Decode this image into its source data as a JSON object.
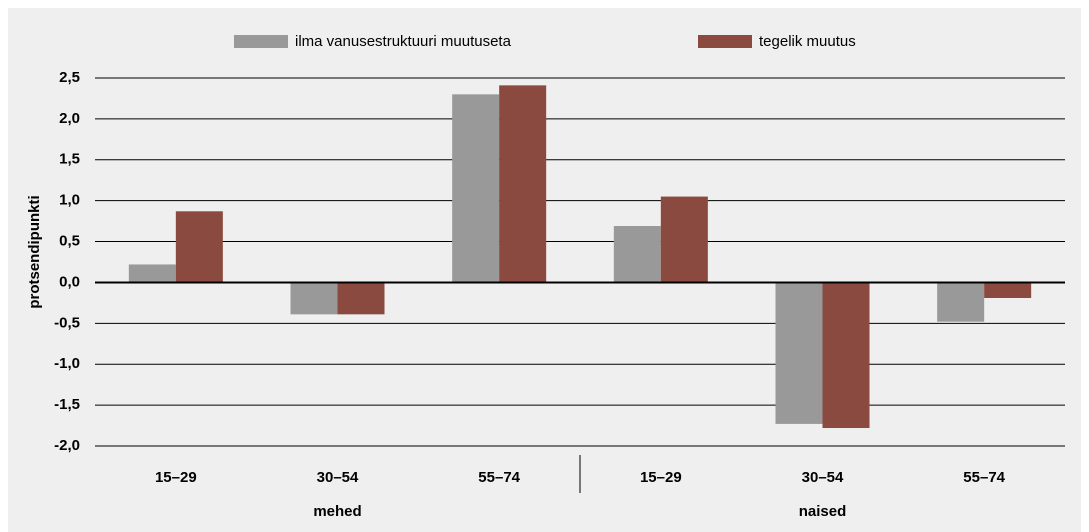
{
  "chart_data": {
    "type": "bar",
    "y_label": "protsendipunkti",
    "categories": [
      "15–29",
      "30–54",
      "55–74",
      "15–29",
      "30–54",
      "55–74"
    ],
    "groups": [
      "mehed",
      "naised"
    ],
    "series": [
      {
        "name": "ilma vanusestruktuuri muutuseta",
        "color": "#999999",
        "values": [
          0.22,
          -0.39,
          2.3,
          0.69,
          -1.73,
          -0.48
        ]
      },
      {
        "name": "tegelik muutus",
        "color": "#8b4a3f",
        "values": [
          0.87,
          -0.39,
          2.41,
          1.05,
          -1.78,
          -0.19
        ]
      }
    ],
    "ylim": [
      -2,
      2.5
    ],
    "yticks": [
      {
        "value": 2.5,
        "label": "2,5"
      },
      {
        "value": 2.0,
        "label": "2,0"
      },
      {
        "value": 1.5,
        "label": "1,5"
      },
      {
        "value": 1.0,
        "label": "1,0"
      },
      {
        "value": 0.5,
        "label": "0,5"
      },
      {
        "value": 0,
        "label": "0,0"
      },
      {
        "value": -0.5,
        "label": "-0,5"
      },
      {
        "value": -1.0,
        "label": "-1,0"
      },
      {
        "value": -1.5,
        "label": "-1,5"
      },
      {
        "value": -2.0,
        "label": "-2,0"
      }
    ],
    "grid": true
  }
}
